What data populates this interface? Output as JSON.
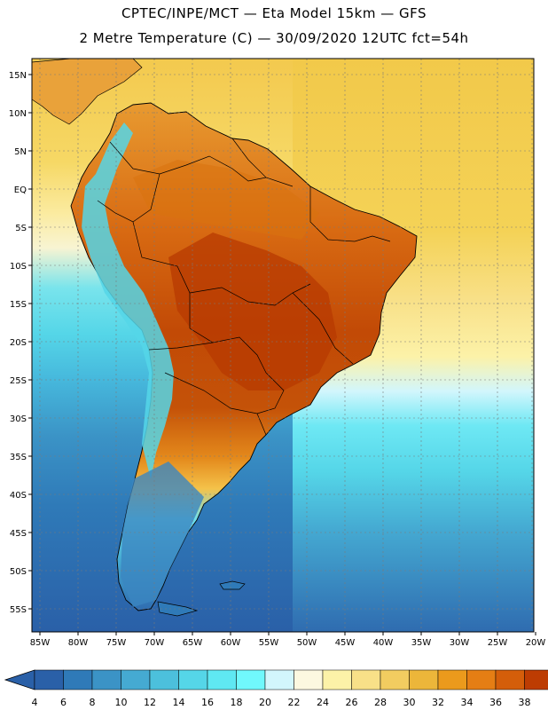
{
  "header": {
    "line1": "CPTEC/INPE/MCT —  Eta Model 15km — GFS",
    "line2": "2 Metre Temperature (C) — 30/09/2020 12UTC fct=54h"
  },
  "map": {
    "lat_labels": [
      "15N",
      "10N",
      "5N",
      "EQ",
      "5S",
      "10S",
      "15S",
      "20S",
      "25S",
      "30S",
      "35S",
      "40S",
      "45S",
      "50S",
      "55S"
    ],
    "lon_labels": [
      "85W",
      "80W",
      "75W",
      "70W",
      "65W",
      "60W",
      "55W",
      "50W",
      "45W",
      "40W",
      "35W",
      "30W",
      "25W",
      "20W"
    ],
    "extent": {
      "lon_min": -86,
      "lon_max": -19,
      "lat_min": -58,
      "lat_max": 16
    }
  },
  "colorbar": {
    "labels": [
      "4",
      "6",
      "8",
      "10",
      "12",
      "14",
      "16",
      "18",
      "20",
      "22",
      "24",
      "26",
      "28",
      "30",
      "32",
      "34",
      "36",
      "38"
    ],
    "colors": [
      "#2a60a8",
      "#2f7ab8",
      "#3b93c6",
      "#45aad2",
      "#4cc0dc",
      "#55d6e8",
      "#5fe8f2",
      "#70f8fc",
      "#d2f6fc",
      "#fcf8e0",
      "#fcf2a8",
      "#f8e088",
      "#f2cc60",
      "#ecb63a",
      "#eb9a1c",
      "#e57e14",
      "#d45e0a",
      "#bd3c02",
      "#ad3a06"
    ],
    "low_color": "#2a60a8",
    "high_color": "#ad3a06"
  }
}
